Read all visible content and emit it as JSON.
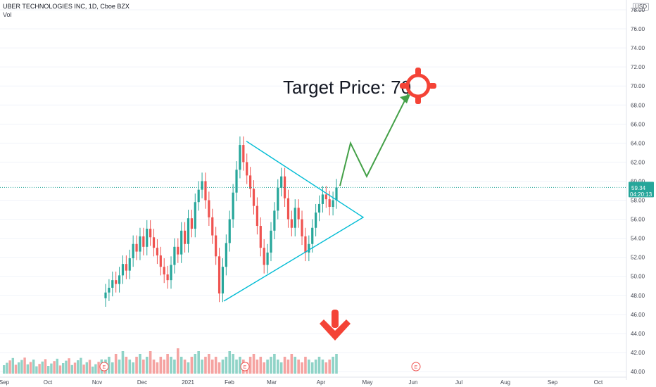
{
  "header": {
    "title": "UBER TECHNOLOGIES INC, 1D, Cboe BZX",
    "vol_label": "Vol",
    "currency": "USD"
  },
  "annotations": {
    "target_text": "Target Price: 70",
    "target_icon": "crosshair-target-icon",
    "down_arrow_icon": "down-arrow-icon",
    "earnings_marker": "E"
  },
  "colors": {
    "up": "#26a69a",
    "down": "#ef5350",
    "up_vol": "#8fd3c7",
    "down_vol": "#f5a3a1",
    "triangle": "#00bcd4",
    "projection": "#43a047",
    "target": "#f44336",
    "price_line": "#26a69a"
  },
  "chart_data": {
    "type": "candlestick",
    "title": "UBER TECHNOLOGIES INC, 1D, Cboe BZX",
    "ylim": [
      40,
      78
    ],
    "y_ticks": [
      "40.00",
      "42.00",
      "44.00",
      "46.00",
      "48.00",
      "50.00",
      "52.00",
      "54.00",
      "56.00",
      "58.00",
      "60.00",
      "62.00",
      "64.00",
      "66.00",
      "68.00",
      "70.00",
      "72.00",
      "74.00",
      "76.00",
      "78.00"
    ],
    "x_ticks": [
      "Sep",
      "Oct",
      "Nov",
      "Dec",
      "2021",
      "Feb",
      "Mar",
      "Apr",
      "May",
      "Jun",
      "Jul",
      "Aug",
      "Sep",
      "Oct"
    ],
    "last_price": "59.34",
    "countdown": "04:20:13",
    "series": [
      {
        "name": "price",
        "closes": [
          48.3,
          48.8,
          49.6,
          49.2,
          50.1,
          51.3,
          50.6,
          51.9,
          53.4,
          52.6,
          54.2,
          53.1,
          55.0,
          54.1,
          53.0,
          52.2,
          51.0,
          50.2,
          49.6,
          51.2,
          53.1,
          52.3,
          54.8,
          53.4,
          56.1,
          55.0,
          57.8,
          59.1,
          60.0,
          58.0,
          56.2,
          54.3,
          52.1,
          48.2,
          51.0,
          53.5,
          56.0,
          58.8,
          61.2,
          63.8,
          62.0,
          60.6,
          59.2,
          57.4,
          55.3,
          53.0,
          51.2,
          52.5,
          54.8,
          56.9,
          59.3,
          60.5,
          58.2,
          56.0,
          55.1,
          57.2,
          56.0,
          54.2,
          52.5,
          53.4,
          55.1,
          56.7,
          57.6,
          58.6,
          58.1,
          57.3,
          58.0,
          59.34
        ]
      },
      {
        "name": "volume",
        "values": [
          5,
          6,
          4,
          7,
          5,
          8,
          6,
          5,
          4,
          6,
          7,
          5,
          6,
          8,
          5,
          4,
          6,
          5,
          7,
          6,
          5,
          9,
          6,
          5,
          4,
          6,
          7,
          8,
          5,
          6,
          7,
          5,
          6,
          4,
          5,
          6,
          8,
          7,
          5,
          6,
          5,
          4,
          6,
          7,
          5,
          6,
          4,
          5,
          6,
          7,
          5,
          4,
          6,
          5,
          7,
          6,
          5,
          4,
          6,
          5,
          4,
          5,
          6,
          5,
          4,
          5,
          6,
          7
        ]
      }
    ],
    "triangle": {
      "apex": [
        "late Apr",
        56.2
      ],
      "upper_start": [
        "Feb",
        64.2
      ],
      "lower_start": [
        "Jan",
        47.4
      ]
    },
    "projection_path": [
      59.5,
      64.0,
      60.5,
      69.2
    ]
  }
}
